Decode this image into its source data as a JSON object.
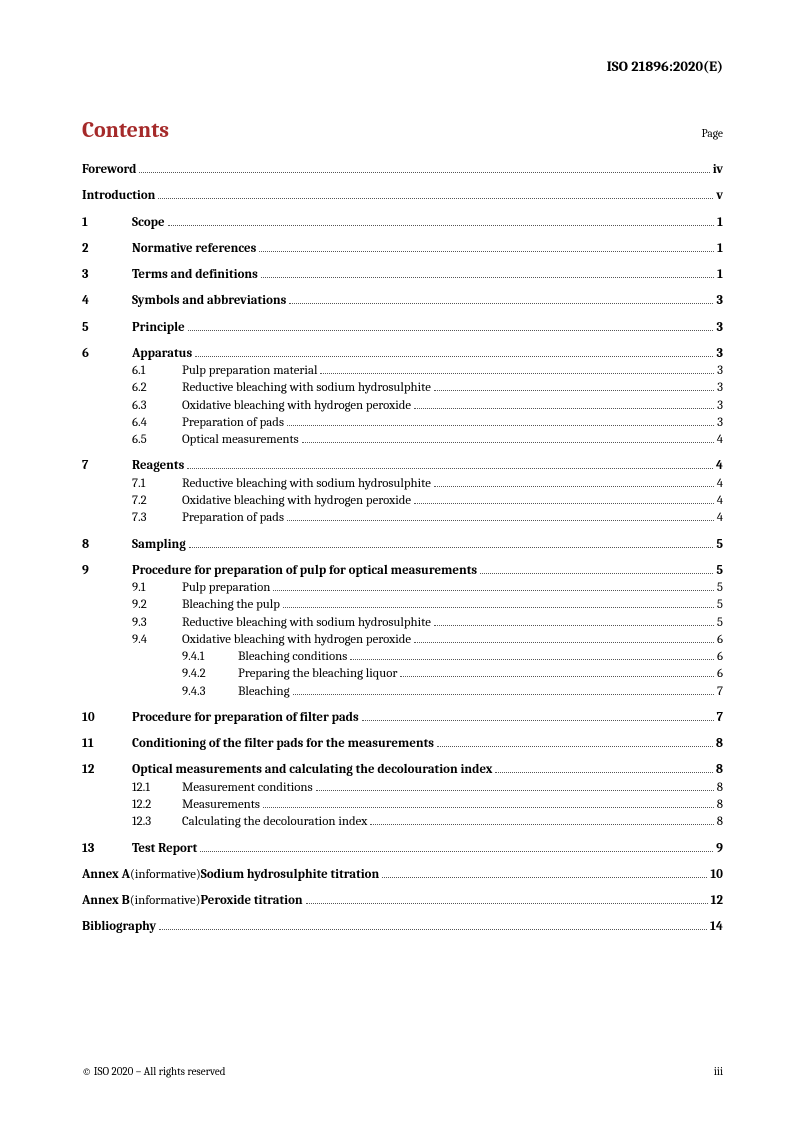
{
  "header": "ISO 21896:2020(E)",
  "title": "Contents",
  "page_label": "Page",
  "entries": [
    {
      "level": 0,
      "text": "Foreword",
      "page": "iv",
      "bold": true
    },
    {
      "level": 0,
      "text": "Introduction",
      "page": "v",
      "bold": true
    },
    {
      "level": 1,
      "num": "1",
      "text": "Scope",
      "page": "1",
      "bold": true
    },
    {
      "level": 1,
      "num": "2",
      "text": "Normative references",
      "page": "1",
      "bold": true
    },
    {
      "level": 1,
      "num": "3",
      "text": "Terms and definitions",
      "page": "1",
      "bold": true
    },
    {
      "level": 1,
      "num": "4",
      "text": "Symbols and abbreviations",
      "page": "3",
      "bold": true
    },
    {
      "level": 1,
      "num": "5",
      "text": "Principle",
      "page": "3",
      "bold": true
    },
    {
      "level": 1,
      "num": "6",
      "text": "Apparatus",
      "page": "3",
      "bold": true
    },
    {
      "level": 2,
      "num": "6.1",
      "text": "Pulp preparation material",
      "page": "3"
    },
    {
      "level": 2,
      "num": "6.2",
      "text": "Reductive bleaching with sodium hydrosulphite",
      "page": "3"
    },
    {
      "level": 2,
      "num": "6.3",
      "text": "Oxidative bleaching with hydrogen peroxide",
      "page": "3"
    },
    {
      "level": 2,
      "num": "6.4",
      "text": "Preparation of pads",
      "page": "3"
    },
    {
      "level": 2,
      "num": "6.5",
      "text": "Optical measurements",
      "page": "4"
    },
    {
      "level": 1,
      "num": "7",
      "text": "Reagents",
      "page": "4",
      "bold": true
    },
    {
      "level": 2,
      "num": "7.1",
      "text": "Reductive bleaching with sodium hydrosulphite",
      "page": "4"
    },
    {
      "level": 2,
      "num": "7.2",
      "text": "Oxidative bleaching with hydrogen peroxide",
      "page": "4"
    },
    {
      "level": 2,
      "num": "7.3",
      "text": "Preparation of pads",
      "page": "4"
    },
    {
      "level": 1,
      "num": "8",
      "text": "Sampling",
      "page": "5",
      "bold": true
    },
    {
      "level": 1,
      "num": "9",
      "text": "Procedure for preparation of pulp for optical measurements",
      "page": "5",
      "bold": true
    },
    {
      "level": 2,
      "num": "9.1",
      "text": "Pulp preparation",
      "page": "5"
    },
    {
      "level": 2,
      "num": "9.2",
      "text": "Bleaching the pulp",
      "page": "5"
    },
    {
      "level": 2,
      "num": "9.3",
      "text": "Reductive bleaching with sodium hydrosulphite",
      "page": "5"
    },
    {
      "level": 2,
      "num": "9.4",
      "text": "Oxidative bleaching with hydrogen peroxide",
      "page": "6"
    },
    {
      "level": 3,
      "num": "9.4.1",
      "text": "Bleaching conditions",
      "page": "6"
    },
    {
      "level": 3,
      "num": "9.4.2",
      "text": "Preparing the bleaching liquor",
      "page": "6"
    },
    {
      "level": 3,
      "num": "9.4.3",
      "text": "Bleaching",
      "page": "7"
    },
    {
      "level": 1,
      "num": "10",
      "text": "Procedure for preparation of filter pads",
      "page": "7",
      "bold": true
    },
    {
      "level": 1,
      "num": "11",
      "text": "Conditioning of the filter pads for the measurements",
      "page": "8",
      "bold": true
    },
    {
      "level": 1,
      "num": "12",
      "text": "Optical measurements and calculating the decolouration index",
      "page": "8",
      "bold": true
    },
    {
      "level": 2,
      "num": "12.1",
      "text": "Measurement conditions",
      "page": "8"
    },
    {
      "level": 2,
      "num": "12.2",
      "text": "Measurements",
      "page": "8"
    },
    {
      "level": 2,
      "num": "12.3",
      "text": "Calculating the decolouration index",
      "page": "8"
    },
    {
      "level": 1,
      "num": "13",
      "text": "Test Report",
      "page": "9",
      "bold": true
    },
    {
      "level": 0,
      "annex": true,
      "pre": "Annex A",
      "mid": " (informative) ",
      "text": "Sodium hydrosulphite titration",
      "page": "10"
    },
    {
      "level": 0,
      "annex": true,
      "pre": "Annex B",
      "mid": " (informative) ",
      "text": "Peroxide titration",
      "page": "12"
    },
    {
      "level": 0,
      "text": "Bibliography",
      "page": "14",
      "bold": true
    }
  ],
  "footer_left": "© ISO 2020 – All rights reserved",
  "footer_right": "iii"
}
